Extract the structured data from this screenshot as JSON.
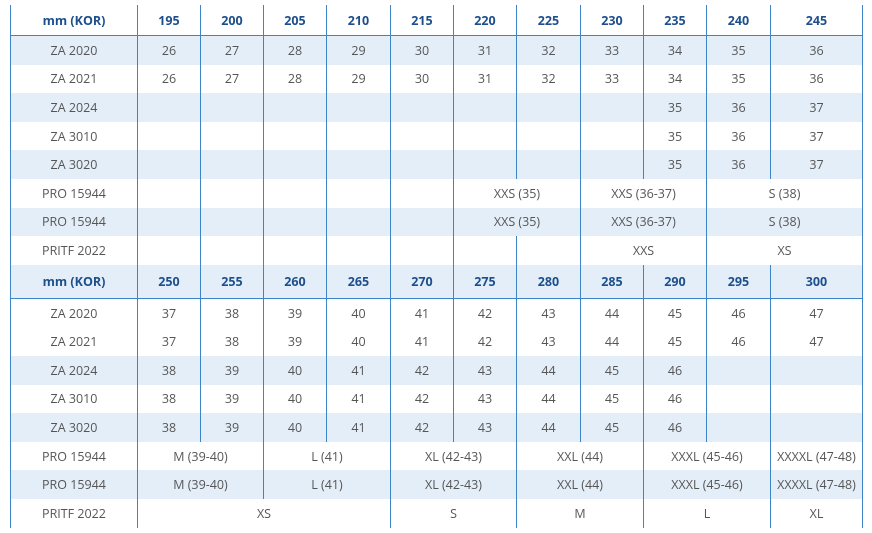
{
  "sections": [
    {
      "header": [
        "mm (KOR)",
        195,
        200,
        205,
        210,
        215,
        220,
        225,
        230,
        235,
        240,
        245
      ],
      "rows": [
        {
          "label": "ZA 2020",
          "cells": [
            26,
            27,
            28,
            29,
            30,
            31,
            32,
            33,
            34,
            35,
            36
          ]
        },
        {
          "label": "ZA 2021",
          "cells": [
            26,
            27,
            28,
            29,
            30,
            31,
            32,
            33,
            34,
            35,
            36
          ]
        },
        {
          "label": "ZA 2024",
          "cells": [
            null,
            null,
            null,
            null,
            null,
            null,
            null,
            null,
            35,
            36,
            37
          ]
        },
        {
          "label": "ZA 3010",
          "cells": [
            null,
            null,
            null,
            null,
            null,
            null,
            null,
            null,
            35,
            36,
            37
          ]
        },
        {
          "label": "ZA 3020",
          "cells": [
            null,
            null,
            null,
            null,
            null,
            null,
            null,
            null,
            35,
            36,
            37
          ]
        },
        {
          "label": "PRO 15944",
          "cells": [
            null,
            null,
            null,
            null,
            null,
            {
              "text": "XXS (35)",
              "span": 2
            },
            {
              "text": "XXS (36-37)",
              "span": 2
            },
            {
              "text": "S (38)",
              "span": 2
            }
          ]
        },
        {
          "label": "PRO 15944",
          "cells": [
            null,
            null,
            null,
            null,
            null,
            {
              "text": "XXS (35)",
              "span": 2
            },
            {
              "text": "XXS (36-37)",
              "span": 2
            },
            {
              "text": "S (38)",
              "span": 2
            }
          ]
        },
        {
          "label": "PRITF 2022",
          "cells": [
            null,
            null,
            null,
            null,
            null,
            null,
            null,
            {
              "text": "XXS",
              "span": 2
            },
            {
              "text": "XS",
              "span": 2
            }
          ]
        }
      ]
    },
    {
      "header": [
        "mm (KOR)",
        250,
        255,
        260,
        265,
        270,
        275,
        280,
        285,
        290,
        295,
        300
      ],
      "rows": [
        {
          "label": "ZA 2020",
          "cells": [
            37,
            38,
            39,
            40,
            41,
            42,
            43,
            44,
            45,
            46,
            47
          ]
        },
        {
          "label": "ZA 2021",
          "cells": [
            37,
            38,
            39,
            40,
            41,
            42,
            43,
            44,
            45,
            46,
            47
          ]
        },
        {
          "label": "ZA 2024",
          "cells": [
            38,
            39,
            40,
            41,
            42,
            43,
            44,
            45,
            46,
            null,
            null
          ]
        },
        {
          "label": "ZA 3010",
          "cells": [
            38,
            39,
            40,
            41,
            42,
            43,
            44,
            45,
            46,
            null,
            null
          ]
        },
        {
          "label": "ZA 3020",
          "cells": [
            38,
            39,
            40,
            41,
            42,
            43,
            44,
            45,
            46,
            null,
            null
          ]
        },
        {
          "label": "PRO 15944",
          "cells": [
            {
              "text": "M (39-40)",
              "span": 2
            },
            {
              "text": "L (41)",
              "span": 2
            },
            {
              "text": "XL (42-43)",
              "span": 2
            },
            {
              "text": "XXL (44)",
              "span": 2
            },
            {
              "text": "XXXL (45-46)",
              "span": 2
            },
            "XXXXL (47-48)"
          ]
        },
        {
          "label": "PRO 15944",
          "cells": [
            {
              "text": "M (39-40)",
              "span": 2
            },
            {
              "text": "L (41)",
              "span": 2
            },
            {
              "text": "XL (42-43)",
              "span": 2
            },
            {
              "text": "XXL (44)",
              "span": 2
            },
            {
              "text": "XXXL (45-46)",
              "span": 2
            },
            "XXXXL (47-48)"
          ]
        },
        {
          "label": "PRITF 2022",
          "cells": [
            {
              "text": "XS",
              "span": 4
            },
            {
              "text": "S",
              "span": 2
            },
            {
              "text": "M",
              "span": 2
            },
            {
              "text": "L",
              "span": 2
            },
            "XL"
          ]
        }
      ]
    }
  ]
}
